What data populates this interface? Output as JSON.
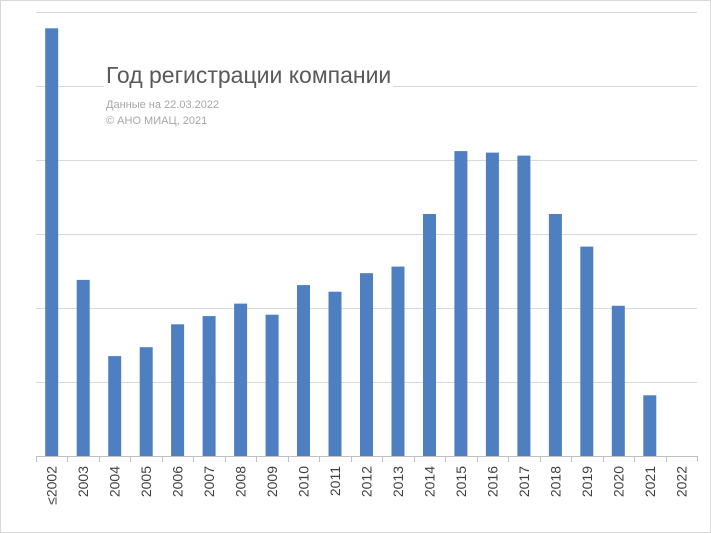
{
  "chart_data": {
    "type": "bar",
    "title": "Год регистрации компании",
    "subtitle_lines": [
      "Данные на 22.03.2022",
      "© АНО МИАЦ, 2021"
    ],
    "categories": [
      "≤2002",
      "2003",
      "2004",
      "2005",
      "2006",
      "2007",
      "2008",
      "2009",
      "2010",
      "2011",
      "2012",
      "2013",
      "2014",
      "2015",
      "2016",
      "2017",
      "2018",
      "2019",
      "2020",
      "2021",
      "2022"
    ],
    "values": [
      5.78,
      2.38,
      1.35,
      1.47,
      1.78,
      1.89,
      2.06,
      1.91,
      2.31,
      2.22,
      2.47,
      2.56,
      3.27,
      4.12,
      4.1,
      4.06,
      3.27,
      2.83,
      2.03,
      0.82,
      0
    ],
    "ylim": [
      0,
      6
    ],
    "y_ticks_shown": false,
    "grid": true,
    "legend": "none",
    "colors": {
      "bar": "#4e7fc0",
      "grid": "#d9d9d9",
      "axis": "#bfbfbf"
    }
  }
}
